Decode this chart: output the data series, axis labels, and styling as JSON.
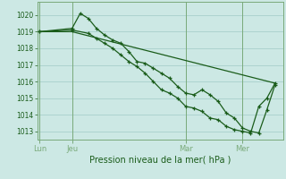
{
  "title": "Pression niveau de la mer( hPa )",
  "background_color": "#cce8e4",
  "grid_color": "#a8d0cc",
  "line_color": "#1a5c1a",
  "sep_color": "#7aaa7a",
  "ylim": [
    1012.5,
    1020.8
  ],
  "yticks": [
    1013,
    1014,
    1015,
    1016,
    1017,
    1018,
    1019,
    1020
  ],
  "day_labels": [
    "Lun",
    "Jeu",
    "Mar",
    "Mer"
  ],
  "day_positions": [
    0,
    4,
    18,
    25
  ],
  "xlim": [
    -0.3,
    30
  ],
  "line1_x": [
    0,
    4,
    5,
    6,
    7,
    8,
    9,
    10,
    11,
    12,
    13,
    14,
    15,
    16,
    17,
    18,
    19,
    20,
    21,
    22,
    23,
    24,
    25,
    26,
    27,
    28,
    29
  ],
  "line1_y": [
    1019.0,
    1019.2,
    1020.1,
    1019.8,
    1019.2,
    1018.8,
    1018.5,
    1018.3,
    1017.8,
    1017.2,
    1017.1,
    1016.8,
    1016.5,
    1016.2,
    1015.7,
    1015.3,
    1015.2,
    1015.5,
    1015.2,
    1014.8,
    1014.1,
    1013.8,
    1013.2,
    1013.0,
    1012.9,
    1014.3,
    1015.8
  ],
  "line2_x": [
    0,
    4,
    6,
    7,
    8,
    9,
    10,
    11,
    12,
    13,
    14,
    15,
    16,
    17,
    18,
    19,
    20,
    21,
    22,
    23,
    24,
    25,
    26,
    27,
    28,
    29
  ],
  "line2_y": [
    1019.0,
    1019.1,
    1018.9,
    1018.6,
    1018.3,
    1018.0,
    1017.6,
    1017.2,
    1016.9,
    1016.5,
    1016.0,
    1015.5,
    1015.3,
    1015.0,
    1014.5,
    1014.4,
    1014.2,
    1013.8,
    1013.7,
    1013.3,
    1013.1,
    1013.0,
    1012.9,
    1014.5,
    1015.0,
    1015.9
  ],
  "line3_x": [
    0,
    4,
    29
  ],
  "line3_y": [
    1019.0,
    1019.0,
    1015.9
  ]
}
